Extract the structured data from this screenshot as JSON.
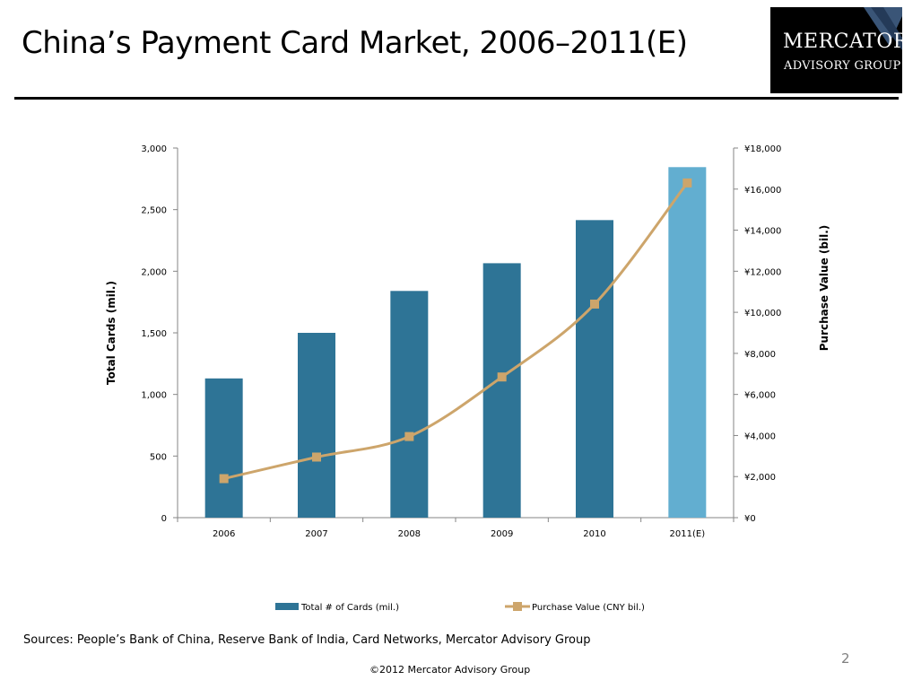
{
  "slide": {
    "title": "China’s Payment Card Market, 2006–2011(E)",
    "sources": "Sources: People’s Bank of China, Reserve Bank of India, Card Networks, Mercator Advisory Group",
    "page_number": "2",
    "copyright": "©2012 Mercator Advisory Group"
  },
  "logo": {
    "line1": "MERCATOR",
    "line2": "ADVISORY GROUP"
  },
  "chart_data": {
    "type": "bar",
    "categories": [
      "2006",
      "2007",
      "2008",
      "2009",
      "2010",
      "2011(E)"
    ],
    "series": [
      {
        "name": "Total # of Cards (mil.)",
        "type": "bar",
        "axis": "left",
        "values": [
          1130,
          1500,
          1840,
          2065,
          2415,
          2845
        ],
        "colors": [
          "#2e7496",
          "#2e7496",
          "#2e7496",
          "#2e7496",
          "#2e7496",
          "#62aed0"
        ]
      },
      {
        "name": "Purchase Value (CNY bil.)",
        "type": "line",
        "axis": "right",
        "marker": "square",
        "color": "#cda56b",
        "values": [
          1900,
          2950,
          3950,
          6850,
          10400,
          16300
        ]
      }
    ],
    "y_left": {
      "label": "Total Cards (mil.)",
      "range": [
        0,
        3000
      ],
      "ticks": [
        0,
        500,
        1000,
        1500,
        2000,
        2500,
        3000
      ],
      "tick_labels": [
        "0",
        "500",
        "1,000",
        "1,500",
        "2,000",
        "2,500",
        "3,000"
      ]
    },
    "y_right": {
      "label": "Purchase Value (bil.)",
      "range": [
        0,
        18000
      ],
      "ticks": [
        0,
        2000,
        4000,
        6000,
        8000,
        10000,
        12000,
        14000,
        16000,
        18000
      ],
      "tick_labels": [
        "¥0",
        "¥2,000",
        "¥4,000",
        "¥6,000",
        "¥8,000",
        "¥10,000",
        "¥12,000",
        "¥14,000",
        "¥16,000",
        "¥18,000"
      ]
    },
    "xlabel": "",
    "grid": false,
    "legend": "bottom"
  }
}
